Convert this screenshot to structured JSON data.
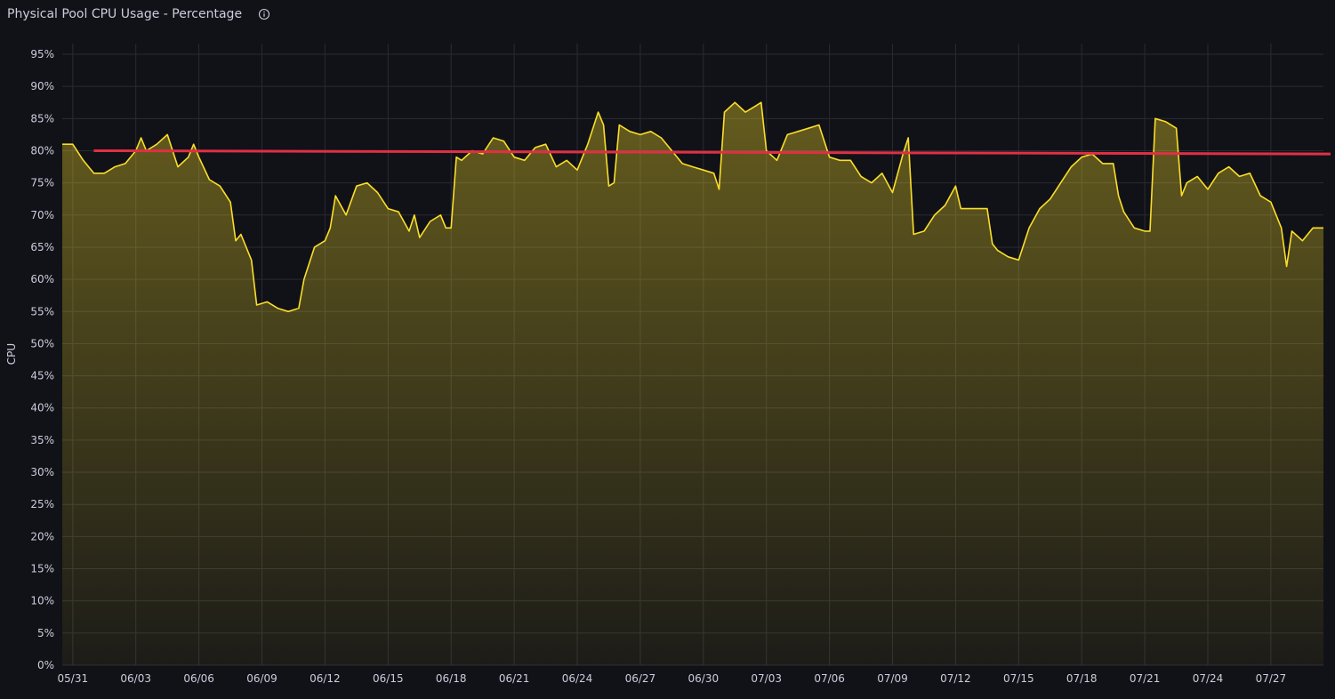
{
  "panel": {
    "title": "Physical Pool CPU Usage - Percentage",
    "info_icon": "info-icon"
  },
  "colors": {
    "background": "#111217",
    "series": "#fade2a",
    "threshold": "#e02f44",
    "grid": "#2a2b31"
  },
  "chart_data": {
    "type": "area",
    "ylabel": "CPU",
    "xlabel": "",
    "ylim": [
      0,
      95
    ],
    "x_range": [
      "2025-05-30T12:00",
      "2025-07-29T12:00"
    ],
    "y_ticks": [
      "0%",
      "5%",
      "10%",
      "15%",
      "20%",
      "25%",
      "30%",
      "35%",
      "40%",
      "45%",
      "50%",
      "55%",
      "60%",
      "65%",
      "70%",
      "75%",
      "80%",
      "85%",
      "90%",
      "95%"
    ],
    "x_ticks": [
      "05/31",
      "06/03",
      "06/06",
      "06/09",
      "06/12",
      "06/15",
      "06/18",
      "06/21",
      "06/24",
      "06/27",
      "06/30",
      "07/03",
      "07/06",
      "07/09",
      "07/12",
      "07/15",
      "07/18",
      "07/21",
      "07/24",
      "07/27"
    ],
    "series": [
      {
        "values": [
          [
            "2025-05-30T12:00",
            81
          ],
          [
            "2025-05-31T00:00",
            81
          ],
          [
            "2025-05-31T12:00",
            78.5
          ],
          [
            "2025-06-01T00:00",
            76.5
          ],
          [
            "2025-06-01T12:00",
            76.5
          ],
          [
            "2025-06-02T00:00",
            77.5
          ],
          [
            "2025-06-02T12:00",
            78
          ],
          [
            "2025-06-03T00:00",
            80
          ],
          [
            "2025-06-03T06:00",
            82
          ],
          [
            "2025-06-03T12:00",
            80
          ],
          [
            "2025-06-04T00:00",
            81
          ],
          [
            "2025-06-04T12:00",
            82.5
          ],
          [
            "2025-06-05T00:00",
            77.5
          ],
          [
            "2025-06-05T12:00",
            79
          ],
          [
            "2025-06-05T18:00",
            81
          ],
          [
            "2025-06-06T00:00",
            79
          ],
          [
            "2025-06-06T12:00",
            75.5
          ],
          [
            "2025-06-07T00:00",
            74.5
          ],
          [
            "2025-06-07T12:00",
            72
          ],
          [
            "2025-06-07T18:00",
            66
          ],
          [
            "2025-06-08T00:00",
            67
          ],
          [
            "2025-06-08T12:00",
            63
          ],
          [
            "2025-06-08T18:00",
            56
          ],
          [
            "2025-06-09T06:00",
            56.5
          ],
          [
            "2025-06-09T18:00",
            55.5
          ],
          [
            "2025-06-10T06:00",
            55
          ],
          [
            "2025-06-10T18:00",
            55.5
          ],
          [
            "2025-06-11T00:00",
            60
          ],
          [
            "2025-06-11T12:00",
            65
          ],
          [
            "2025-06-12T00:00",
            66
          ],
          [
            "2025-06-12T06:00",
            68
          ],
          [
            "2025-06-12T12:00",
            73
          ],
          [
            "2025-06-13T00:00",
            70
          ],
          [
            "2025-06-13T12:00",
            74.5
          ],
          [
            "2025-06-14T00:00",
            75
          ],
          [
            "2025-06-14T12:00",
            73.5
          ],
          [
            "2025-06-15T00:00",
            71
          ],
          [
            "2025-06-15T12:00",
            70.5
          ],
          [
            "2025-06-16T00:00",
            67.5
          ],
          [
            "2025-06-16T06:00",
            70
          ],
          [
            "2025-06-16T12:00",
            66.5
          ],
          [
            "2025-06-17T00:00",
            69
          ],
          [
            "2025-06-17T12:00",
            70
          ],
          [
            "2025-06-17T18:00",
            68
          ],
          [
            "2025-06-18T00:00",
            68
          ],
          [
            "2025-06-18T06:00",
            79
          ],
          [
            "2025-06-18T12:00",
            78.5
          ],
          [
            "2025-06-19T00:00",
            80
          ],
          [
            "2025-06-19T12:00",
            79.5
          ],
          [
            "2025-06-20T00:00",
            82
          ],
          [
            "2025-06-20T12:00",
            81.5
          ],
          [
            "2025-06-21T00:00",
            79
          ],
          [
            "2025-06-21T12:00",
            78.5
          ],
          [
            "2025-06-22T00:00",
            80.5
          ],
          [
            "2025-06-22T12:00",
            81
          ],
          [
            "2025-06-23T00:00",
            77.5
          ],
          [
            "2025-06-23T12:00",
            78.5
          ],
          [
            "2025-06-24T00:00",
            77
          ],
          [
            "2025-06-24T12:00",
            81
          ],
          [
            "2025-06-25T00:00",
            86
          ],
          [
            "2025-06-25T06:00",
            84
          ],
          [
            "2025-06-25T12:00",
            74.5
          ],
          [
            "2025-06-25T18:00",
            75
          ],
          [
            "2025-06-26T00:00",
            84
          ],
          [
            "2025-06-26T12:00",
            83
          ],
          [
            "2025-06-27T00:00",
            82.5
          ],
          [
            "2025-06-27T12:00",
            83
          ],
          [
            "2025-06-28T00:00",
            82
          ],
          [
            "2025-06-28T12:00",
            80
          ],
          [
            "2025-06-29T00:00",
            78
          ],
          [
            "2025-06-29T12:00",
            77.5
          ],
          [
            "2025-06-30T00:00",
            77
          ],
          [
            "2025-06-30T12:00",
            76.5
          ],
          [
            "2025-06-30T18:00",
            74
          ],
          [
            "2025-07-01T00:00",
            86
          ],
          [
            "2025-07-01T12:00",
            87.5
          ],
          [
            "2025-07-02T00:00",
            86
          ],
          [
            "2025-07-02T12:00",
            87
          ],
          [
            "2025-07-02T18:00",
            87.5
          ],
          [
            "2025-07-03T00:00",
            80
          ],
          [
            "2025-07-03T12:00",
            78.5
          ],
          [
            "2025-07-04T00:00",
            82.5
          ],
          [
            "2025-07-04T12:00",
            83
          ],
          [
            "2025-07-05T00:00",
            83.5
          ],
          [
            "2025-07-05T12:00",
            84
          ],
          [
            "2025-07-06T00:00",
            79
          ],
          [
            "2025-07-06T12:00",
            78.5
          ],
          [
            "2025-07-07T00:00",
            78.5
          ],
          [
            "2025-07-07T12:00",
            76
          ],
          [
            "2025-07-08T00:00",
            75
          ],
          [
            "2025-07-08T12:00",
            76.5
          ],
          [
            "2025-07-09T00:00",
            73.5
          ],
          [
            "2025-07-09T12:00",
            79.5
          ],
          [
            "2025-07-09T18:00",
            82
          ],
          [
            "2025-07-10T00:00",
            67
          ],
          [
            "2025-07-10T12:00",
            67.5
          ],
          [
            "2025-07-11T00:00",
            70
          ],
          [
            "2025-07-11T12:00",
            71.5
          ],
          [
            "2025-07-12T00:00",
            74.5
          ],
          [
            "2025-07-12T06:00",
            71
          ],
          [
            "2025-07-13T00:00",
            71
          ],
          [
            "2025-07-13T12:00",
            71
          ],
          [
            "2025-07-13T18:00",
            65.5
          ],
          [
            "2025-07-14T00:00",
            64.5
          ],
          [
            "2025-07-14T12:00",
            63.5
          ],
          [
            "2025-07-15T00:00",
            63
          ],
          [
            "2025-07-15T12:00",
            68
          ],
          [
            "2025-07-16T00:00",
            71
          ],
          [
            "2025-07-16T12:00",
            72.5
          ],
          [
            "2025-07-17T00:00",
            75
          ],
          [
            "2025-07-17T12:00",
            77.5
          ],
          [
            "2025-07-18T00:00",
            79
          ],
          [
            "2025-07-18T12:00",
            79.5
          ],
          [
            "2025-07-19T00:00",
            78
          ],
          [
            "2025-07-19T12:00",
            78
          ],
          [
            "2025-07-19T18:00",
            73
          ],
          [
            "2025-07-20T00:00",
            70.5
          ],
          [
            "2025-07-20T12:00",
            68
          ],
          [
            "2025-07-21T00:00",
            67.5
          ],
          [
            "2025-07-21T06:00",
            67.5
          ],
          [
            "2025-07-21T12:00",
            85
          ],
          [
            "2025-07-22T00:00",
            84.5
          ],
          [
            "2025-07-22T12:00",
            83.5
          ],
          [
            "2025-07-22T18:00",
            73
          ],
          [
            "2025-07-23T00:00",
            75
          ],
          [
            "2025-07-23T12:00",
            76
          ],
          [
            "2025-07-24T00:00",
            74
          ],
          [
            "2025-07-24T12:00",
            76.5
          ],
          [
            "2025-07-25T00:00",
            77.5
          ],
          [
            "2025-07-25T12:00",
            76
          ],
          [
            "2025-07-26T00:00",
            76.5
          ],
          [
            "2025-07-26T12:00",
            73
          ],
          [
            "2025-07-27T00:00",
            72
          ],
          [
            "2025-07-27T12:00",
            68
          ],
          [
            "2025-07-27T18:00",
            62
          ],
          [
            "2025-07-28T00:00",
            67.5
          ],
          [
            "2025-07-28T12:00",
            66
          ],
          [
            "2025-07-29T00:00",
            68
          ],
          [
            "2025-07-29T12:00",
            68
          ]
        ]
      }
    ],
    "threshold": {
      "x_range": [
        "2025-06-01T00:00",
        "2025-07-29T12:00"
      ],
      "y_start": 80,
      "y_end": 79.5
    },
    "grid": true,
    "legend": "none"
  }
}
